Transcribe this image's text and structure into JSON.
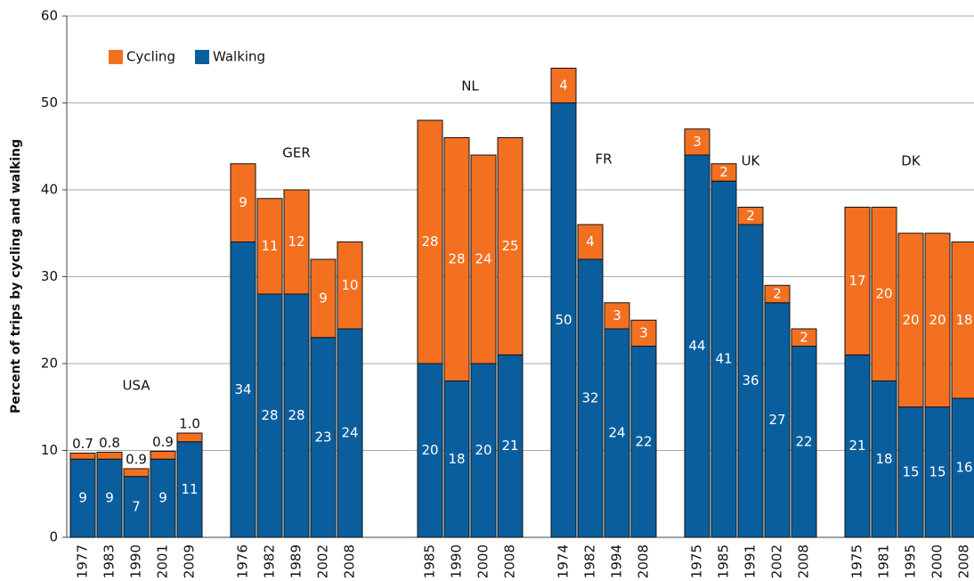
{
  "chart_data": {
    "type": "stacked_bar",
    "y_label": "Percent of trips by cycling and walking",
    "ylim": [
      0,
      60
    ],
    "yticks": [
      0,
      10,
      20,
      30,
      40,
      50,
      60
    ],
    "grid": true,
    "legend": "top-left",
    "series": [
      {
        "name": "Cycling",
        "color": "#f37021"
      },
      {
        "name": "Walking",
        "color": "#0b5e9e"
      }
    ],
    "groups": [
      {
        "label": "USA",
        "categories": [
          "1977",
          "1983",
          "1990",
          "2001",
          "2009"
        ],
        "series": [
          {
            "values": [
              0.7,
              0.8,
              0.9,
              0.9,
              1.0
            ],
            "value_labels": [
              "0.7",
              "0.8",
              "0.9",
              "0.9",
              "1.0"
            ]
          },
          {
            "values": [
              9,
              9,
              7,
              9,
              11
            ]
          }
        ]
      },
      {
        "label": "GER",
        "categories": [
          "1976",
          "1982",
          "1989",
          "2002",
          "2008"
        ],
        "series": [
          {
            "values": [
              9,
              11,
              12,
              9,
              10
            ]
          },
          {
            "values": [
              34,
              28,
              28,
              23,
              24
            ]
          }
        ]
      },
      {
        "label": "NL",
        "categories": [
          "1985",
          "1990",
          "2000",
          "2008"
        ],
        "series": [
          {
            "values": [
              28,
              28,
              24,
              25
            ]
          },
          {
            "values": [
              20,
              18,
              20,
              21
            ]
          }
        ]
      },
      {
        "label": "FR",
        "categories": [
          "1974",
          "1982",
          "1994",
          "2008"
        ],
        "series": [
          {
            "values": [
              4,
              4,
              3,
              3
            ]
          },
          {
            "values": [
              50,
              32,
              24,
              22
            ]
          }
        ]
      },
      {
        "label": "UK",
        "categories": [
          "1975",
          "1985",
          "1991",
          "2002",
          "2008"
        ],
        "series": [
          {
            "values": [
              3,
              2,
              2,
              2,
              2
            ]
          },
          {
            "values": [
              44,
              41,
              36,
              27,
              22
            ]
          }
        ]
      },
      {
        "label": "DK",
        "categories": [
          "1975",
          "1981",
          "1995",
          "2000",
          "2008"
        ],
        "series": [
          {
            "values": [
              17,
              20,
              20,
              20,
              18
            ]
          },
          {
            "values": [
              21,
              18,
              15,
              15,
              16
            ]
          }
        ]
      }
    ]
  }
}
